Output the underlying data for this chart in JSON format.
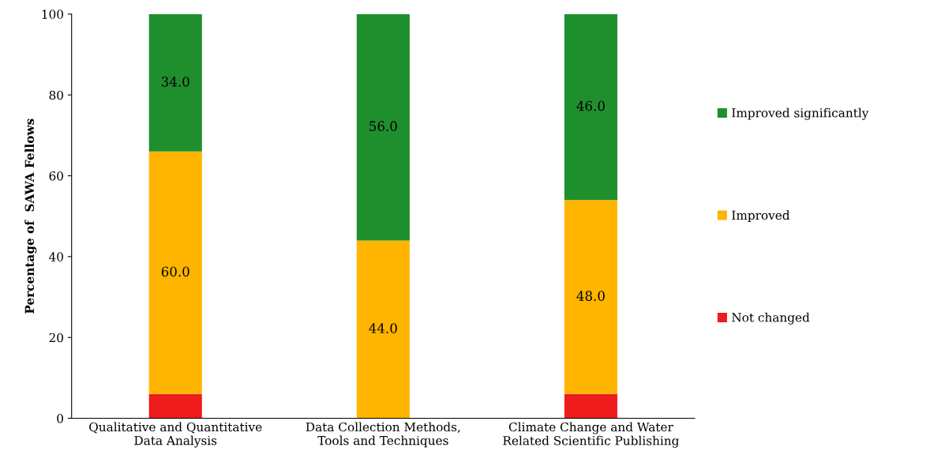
{
  "chart_data": {
    "type": "bar",
    "stacked": true,
    "ylabel": "Percentage of  SAWA Fellows",
    "categories": [
      "Qualitative and Quantitative\nData Analysis",
      "Data Collection Methods,\nTools and Techniques",
      "Climate Change and Water\nRelated Scientific Publishing"
    ],
    "series": [
      {
        "name": "Not changed",
        "color": "#ee1c1c",
        "values": [
          6,
          0,
          6
        ],
        "value_labels": [
          null,
          null,
          null
        ]
      },
      {
        "name": "Improved",
        "color": "#ffb400",
        "values": [
          60,
          44,
          48
        ],
        "value_labels": [
          "60.0",
          "44.0",
          "48.0"
        ]
      },
      {
        "name": "Improved significantly",
        "color": "#1f8f2d",
        "values": [
          34,
          56,
          46
        ],
        "value_labels": [
          "34.0",
          "56.0",
          "46.0"
        ]
      }
    ],
    "ylim": [
      0,
      100
    ],
    "yticks": [
      0,
      20,
      40,
      60,
      80,
      100
    ],
    "grid": false,
    "legend": "right"
  }
}
